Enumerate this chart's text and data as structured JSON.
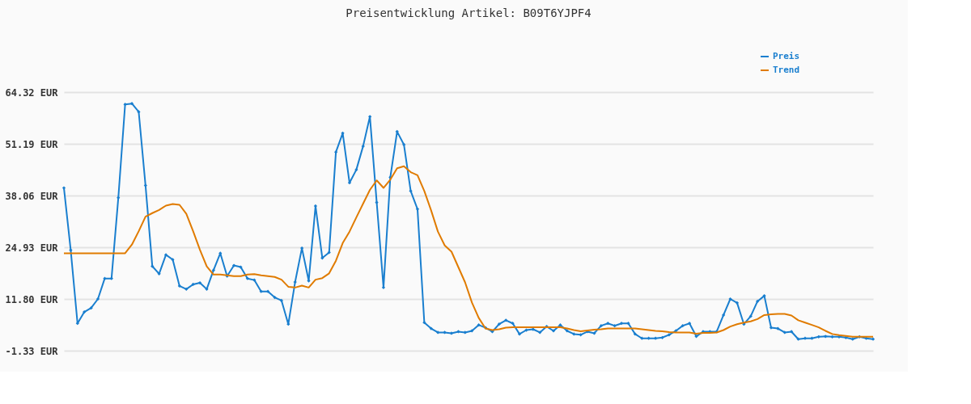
{
  "chart_data": {
    "type": "line",
    "title": "Preisentwicklung Artikel: B09T6YJPF4",
    "categories": [
      null,
      null,
      null,
      null,
      null,
      null,
      null,
      null,
      null,
      null,
      null,
      null,
      null,
      null,
      null,
      null,
      null,
      null,
      null,
      null,
      null,
      null,
      null,
      null,
      null,
      null,
      null,
      null,
      null,
      null,
      null,
      null,
      null,
      null,
      null,
      null,
      null,
      null,
      null,
      null,
      null,
      null,
      null,
      null,
      null,
      null,
      null,
      null,
      null,
      null,
      null,
      null,
      null,
      null,
      null,
      null,
      null,
      null,
      null,
      null,
      null,
      null,
      null,
      null,
      null,
      null,
      null,
      null,
      null,
      null,
      null,
      null,
      null,
      null,
      null,
      null,
      null,
      null,
      null,
      null,
      null,
      null,
      null,
      null,
      null,
      null,
      null,
      null,
      null,
      null,
      null,
      null,
      null,
      null,
      null,
      null,
      null,
      null,
      null,
      null,
      null,
      null,
      null,
      null,
      null,
      null,
      null,
      null,
      null,
      null,
      null,
      null,
      null,
      null,
      null,
      null,
      null,
      null,
      null,
      null
    ],
    "series": [
      {
        "name": "Preis",
        "color": "#1a7fcf",
        "marker": "diamond",
        "values": [
          40.0,
          24.2,
          5.6,
          8.5,
          9.5,
          11.8,
          17.0,
          17.0,
          37.5,
          61.2,
          61.4,
          59.3,
          40.6,
          20.1,
          18.2,
          23.0,
          21.8,
          15.1,
          14.3,
          15.5,
          15.9,
          14.3,
          19.1,
          23.4,
          17.6,
          20.3,
          19.9,
          17.0,
          16.6,
          13.7,
          13.7,
          12.2,
          11.4,
          5.4,
          16.1,
          24.7,
          16.4,
          35.4,
          22.2,
          23.6,
          49.1,
          53.9,
          41.3,
          44.6,
          50.6,
          58.1,
          36.3,
          14.7,
          42.7,
          54.3,
          51.0,
          39.2,
          34.6,
          5.8,
          4.3,
          3.3,
          3.3,
          3.1,
          3.5,
          3.3,
          3.7,
          5.2,
          4.5,
          3.5,
          5.4,
          6.4,
          5.6,
          2.9,
          3.9,
          4.1,
          3.3,
          4.8,
          3.7,
          5.2,
          3.7,
          2.9,
          2.7,
          3.5,
          3.1,
          5.0,
          5.6,
          5.0,
          5.6,
          5.6,
          2.9,
          1.8,
          1.8,
          1.8,
          2.0,
          2.7,
          3.7,
          5.0,
          5.6,
          2.3,
          3.5,
          3.5,
          3.5,
          7.7,
          11.8,
          10.8,
          5.4,
          7.4,
          11.2,
          12.6,
          4.5,
          4.3,
          3.3,
          3.5,
          1.6,
          1.8,
          1.8,
          2.2,
          2.3,
          2.2,
          2.2,
          2.0,
          1.6,
          2.2,
          1.8,
          1.6
        ]
      },
      {
        "name": "Trend",
        "color": "#e07b00",
        "marker": "none",
        "values": [
          23.4,
          23.4,
          23.4,
          23.4,
          23.4,
          23.4,
          23.4,
          23.4,
          23.4,
          23.4,
          25.6,
          29.0,
          32.7,
          33.6,
          34.4,
          35.5,
          35.9,
          35.7,
          33.4,
          29.0,
          24.3,
          20.1,
          18.0,
          18.0,
          17.8,
          17.6,
          17.6,
          18.0,
          18.1,
          17.8,
          17.6,
          17.4,
          16.7,
          14.9,
          14.7,
          15.2,
          14.7,
          16.7,
          17.1,
          18.3,
          21.5,
          26.0,
          28.9,
          32.5,
          36.0,
          39.5,
          41.9,
          40.0,
          42.1,
          45.0,
          45.5,
          44.0,
          43.2,
          39.2,
          34.3,
          28.9,
          25.4,
          23.8,
          19.9,
          16.0,
          10.9,
          7.0,
          4.3,
          3.9,
          4.1,
          4.5,
          4.6,
          4.6,
          4.6,
          4.6,
          4.6,
          4.6,
          4.6,
          4.6,
          4.3,
          3.9,
          3.6,
          3.8,
          4.0,
          4.1,
          4.3,
          4.3,
          4.3,
          4.3,
          4.3,
          4.1,
          3.9,
          3.7,
          3.6,
          3.4,
          3.3,
          3.3,
          3.3,
          3.0,
          3.2,
          3.2,
          3.3,
          3.9,
          4.8,
          5.4,
          5.8,
          6.1,
          6.7,
          7.7,
          7.9,
          8.0,
          8.0,
          7.6,
          6.4,
          5.8,
          5.2,
          4.6,
          3.7,
          2.9,
          2.6,
          2.4,
          2.2,
          2.2,
          2.2,
          2.2
        ]
      }
    ],
    "ylim": [
      -1.33,
      64.32
    ],
    "yticks": [
      {
        "value": -1.33,
        "label": "-1.33 EUR"
      },
      {
        "value": 11.8,
        "label": "11.80 EUR"
      },
      {
        "value": 24.93,
        "label": "24.93 EUR"
      },
      {
        "value": 38.06,
        "label": "38.06 EUR"
      },
      {
        "value": 51.19,
        "label": "51.19 EUR"
      },
      {
        "value": 64.32,
        "label": "64.32 EUR"
      }
    ],
    "tick_labels": "y",
    "grid": "y",
    "legend": "top right",
    "line_style": "solid"
  }
}
